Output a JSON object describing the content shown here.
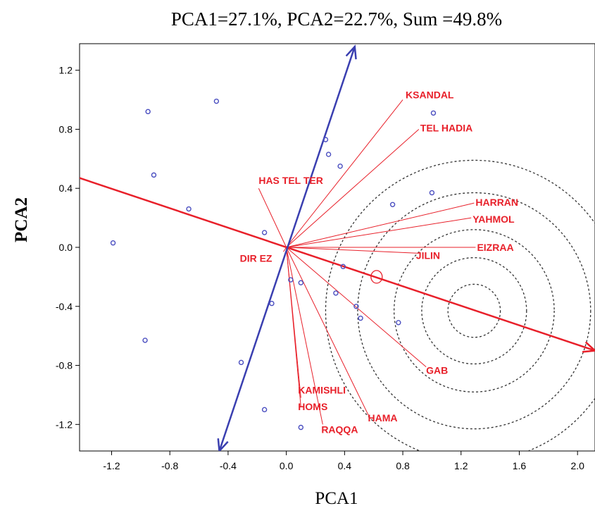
{
  "chart_data": {
    "type": "scatter",
    "title": "PCA1=27.1%, PCA2=22.7%, Sum =49.8%",
    "xlabel": "PCA1",
    "ylabel": "PCA2",
    "xlim": [
      -1.42,
      2.12
    ],
    "ylim": [
      -1.38,
      1.38
    ],
    "xticks": [
      -1.2,
      -0.8,
      -0.4,
      0.0,
      0.4,
      0.8,
      1.2,
      1.6,
      2.0
    ],
    "yticks": [
      1.2,
      0.8,
      0.4,
      0.0,
      -0.4,
      -0.8,
      -1.2
    ],
    "xtick_labels": [
      "-1.2",
      "-0.8",
      "-0.4",
      "0.0",
      "0.4",
      "0.8",
      "1.2",
      "1.6",
      "2.0"
    ],
    "ytick_labels": [
      "1.2",
      "0.8",
      "0.4",
      "0.0",
      "-0.4",
      "-0.8",
      "-1.2"
    ],
    "grid": false,
    "points": [
      {
        "x": -0.48,
        "y": 0.99
      },
      {
        "x": -0.95,
        "y": 0.92
      },
      {
        "x": -0.91,
        "y": 0.49
      },
      {
        "x": -0.67,
        "y": 0.26
      },
      {
        "x": -1.19,
        "y": 0.03
      },
      {
        "x": -0.97,
        "y": -0.63
      },
      {
        "x": -0.31,
        "y": -0.78
      },
      {
        "x": -0.15,
        "y": -1.1
      },
      {
        "x": -0.15,
        "y": 0.1
      },
      {
        "x": -0.1,
        "y": -0.38
      },
      {
        "x": 0.03,
        "y": -0.22
      },
      {
        "x": 0.1,
        "y": -0.24
      },
      {
        "x": 0.27,
        "y": 0.73
      },
      {
        "x": 0.29,
        "y": 0.63
      },
      {
        "x": 0.37,
        "y": 0.55
      },
      {
        "x": 0.39,
        "y": -0.13
      },
      {
        "x": 0.34,
        "y": -0.31
      },
      {
        "x": 0.48,
        "y": -0.4
      },
      {
        "x": 0.51,
        "y": -0.48
      },
      {
        "x": 0.73,
        "y": 0.29
      },
      {
        "x": 1.01,
        "y": 0.91
      },
      {
        "x": 1.0,
        "y": 0.37
      },
      {
        "x": 0.77,
        "y": -0.51
      },
      {
        "x": 0.1,
        "y": -1.22
      }
    ],
    "environment_vectors": [
      {
        "name": "KSANDAL",
        "x": 0.8,
        "y": 1.0
      },
      {
        "name": "TEL HADIA",
        "x": 0.91,
        "y": 0.8
      },
      {
        "name": "HAS TEL TER",
        "x": -0.19,
        "y": 0.4
      },
      {
        "name": "HARRAN",
        "x": 1.29,
        "y": 0.3
      },
      {
        "name": "YAHMOL",
        "x": 1.27,
        "y": 0.2
      },
      {
        "name": "EIZRAA",
        "x": 1.3,
        "y": 0.0
      },
      {
        "name": "JILIN",
        "x": 0.91,
        "y": -0.04
      },
      {
        "name": "DIR EZ",
        "x": -0.02,
        "y": -0.03
      },
      {
        "name": "GAB",
        "x": 0.96,
        "y": -0.81
      },
      {
        "name": "KAMISHLI",
        "x": 0.1,
        "y": -1.02
      },
      {
        "name": "HOMS",
        "x": 0.1,
        "y": -1.08
      },
      {
        "name": "RAQQA",
        "x": 0.25,
        "y": -1.2
      },
      {
        "name": "HAMA",
        "x": 0.57,
        "y": -1.15
      }
    ],
    "axis_vectors": [
      {
        "name": "PCA1",
        "from": [
          -1.42,
          0.47
        ],
        "to": [
          2.12,
          -0.7
        ],
        "color": "#e8202a"
      },
      {
        "name": "PCA2",
        "from": [
          -0.46,
          -1.38
        ],
        "to": [
          0.47,
          1.36
        ],
        "color": "#3a3fb0"
      }
    ],
    "ideal_point": {
      "x": 0.62,
      "y": -0.2
    },
    "concentric_center": {
      "x": 1.29,
      "y": -0.43
    },
    "concentric_radii": [
      0.18,
      0.36,
      0.55,
      0.8,
      1.02
    ]
  }
}
